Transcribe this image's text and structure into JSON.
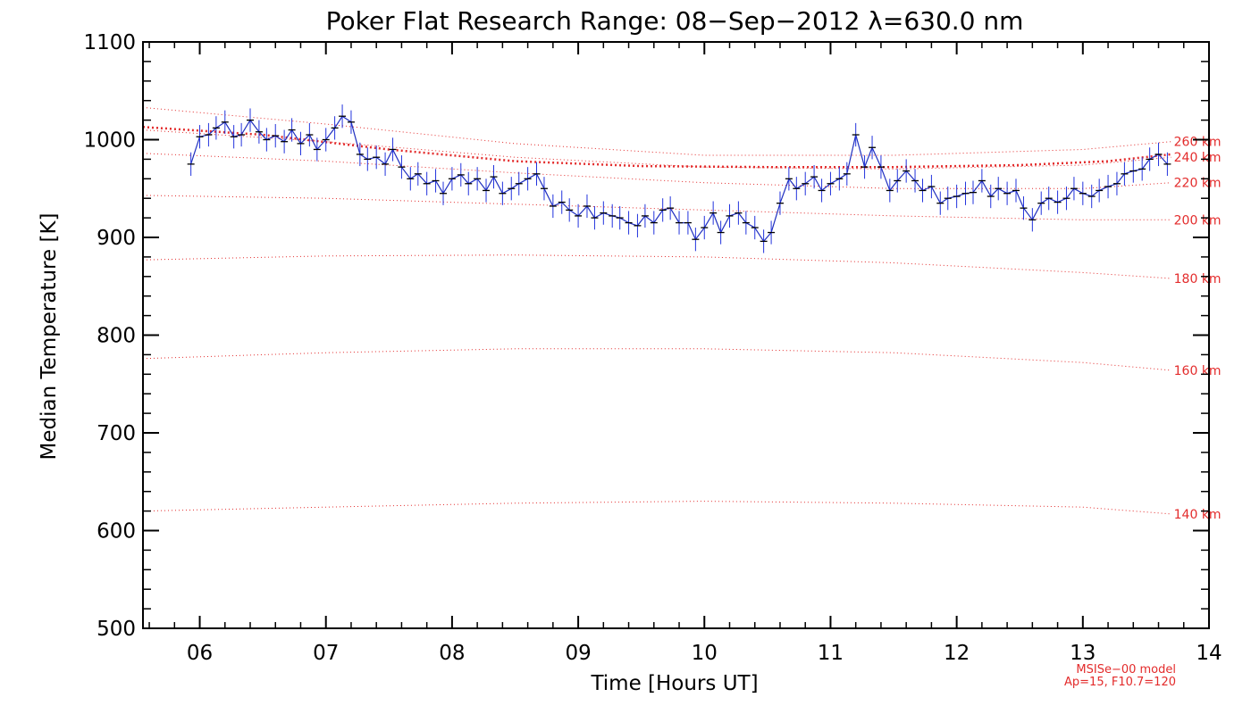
{
  "chart_data": {
    "type": "line",
    "title": "Poker Flat Research Range: 08−Sep−2012 λ=630.0 nm",
    "xlabel": "Time [Hours UT]",
    "ylabel": "Median Temperature [K]",
    "xlim": [
      5.55,
      14.0
    ],
    "ylim": [
      500,
      1100
    ],
    "x_ticks": [
      6,
      7,
      8,
      9,
      10,
      11,
      12,
      13,
      14
    ],
    "x_tick_labels": [
      "06",
      "07",
      "08",
      "09",
      "10",
      "11",
      "12",
      "13",
      "14"
    ],
    "y_ticks": [
      500,
      600,
      700,
      800,
      900,
      1000,
      1100
    ],
    "y_tick_labels": [
      "500",
      "600",
      "700",
      "800",
      "900",
      "1000",
      "1100"
    ],
    "grid": false,
    "colors": {
      "measurement_line": "#1f2fbf",
      "error_bars": "#2233dd",
      "median_marker": "#000000",
      "model": "#e32b2b"
    },
    "measured_series": {
      "x": [
        5.93,
        6.0,
        6.07,
        6.13,
        6.2,
        6.27,
        6.33,
        6.4,
        6.47,
        6.53,
        6.6,
        6.67,
        6.73,
        6.8,
        6.87,
        6.93,
        7.0,
        7.07,
        7.13,
        7.2,
        7.27,
        7.33,
        7.4,
        7.47,
        7.53,
        7.6,
        7.67,
        7.73,
        7.8,
        7.87,
        7.93,
        8.0,
        8.07,
        8.13,
        8.2,
        8.27,
        8.33,
        8.4,
        8.47,
        8.53,
        8.6,
        8.67,
        8.73,
        8.8,
        8.87,
        8.93,
        9.0,
        9.07,
        9.13,
        9.2,
        9.27,
        9.33,
        9.4,
        9.47,
        9.53,
        9.6,
        9.67,
        9.73,
        9.8,
        9.87,
        9.93,
        10.0,
        10.07,
        10.13,
        10.2,
        10.27,
        10.33,
        10.4,
        10.47,
        10.53,
        10.6,
        10.67,
        10.73,
        10.8,
        10.87,
        10.93,
        11.0,
        11.07,
        11.13,
        11.2,
        11.27,
        11.33,
        11.4,
        11.47,
        11.53,
        11.6,
        11.67,
        11.73,
        11.8,
        11.87,
        11.93,
        12.0,
        12.07,
        12.13,
        12.2,
        12.27,
        12.33,
        12.4,
        12.47,
        12.53,
        12.6,
        12.67,
        12.73,
        12.8,
        12.87,
        12.93,
        13.0,
        13.07,
        13.13,
        13.2,
        13.27,
        13.33,
        13.4,
        13.47,
        13.53,
        13.6,
        13.67
      ],
      "y": [
        975,
        1003,
        1005,
        1012,
        1018,
        1003,
        1005,
        1020,
        1008,
        1000,
        1004,
        998,
        1010,
        996,
        1005,
        990,
        1000,
        1012,
        1024,
        1018,
        985,
        980,
        982,
        975,
        990,
        972,
        960,
        965,
        955,
        958,
        945,
        960,
        964,
        955,
        960,
        948,
        962,
        945,
        950,
        955,
        960,
        965,
        950,
        932,
        936,
        928,
        922,
        932,
        920,
        925,
        922,
        920,
        915,
        912,
        922,
        915,
        928,
        930,
        915,
        915,
        898,
        910,
        925,
        905,
        922,
        925,
        915,
        910,
        896,
        905,
        935,
        960,
        950,
        955,
        962,
        948,
        955,
        960,
        965,
        1005,
        972,
        992,
        972,
        948,
        958,
        968,
        958,
        948,
        952,
        935,
        940,
        942,
        945,
        946,
        958,
        942,
        950,
        945,
        948,
        930,
        918,
        935,
        940,
        936,
        940,
        950,
        945,
        942,
        948,
        952,
        955,
        965,
        968,
        970,
        980,
        985,
        975
      ],
      "error": 12
    },
    "model_note": [
      "MSISe−00 model",
      "Ap=15, F10.7=120"
    ],
    "model_curves": [
      {
        "label": "140 km",
        "x": [
          5.55,
          7.0,
          8.5,
          10.0,
          11.5,
          13.0,
          13.7
        ],
        "y": [
          620,
          624,
          628,
          630,
          628,
          624,
          617
        ]
      },
      {
        "label": "160 km",
        "x": [
          5.55,
          7.0,
          8.5,
          10.0,
          11.5,
          13.0,
          13.7
        ],
        "y": [
          776,
          782,
          786,
          786,
          782,
          772,
          764
        ]
      },
      {
        "label": "180 km",
        "x": [
          5.55,
          7.0,
          8.5,
          10.0,
          11.5,
          13.0,
          13.7
        ],
        "y": [
          877,
          881,
          882,
          880,
          874,
          864,
          858
        ]
      },
      {
        "label": "200 km",
        "x": [
          5.55,
          7.0,
          8.5,
          10.0,
          11.5,
          13.0,
          13.7
        ],
        "y": [
          943,
          940,
          934,
          928,
          922,
          918,
          918
        ]
      },
      {
        "label": "220 km",
        "x": [
          5.55,
          7.0,
          8.5,
          10.0,
          11.5,
          13.0,
          13.7
        ],
        "y": [
          986,
          978,
          966,
          956,
          950,
          950,
          956
        ]
      },
      {
        "label": "240 km",
        "x": [
          5.55,
          7.0,
          8.5,
          10.0,
          11.5,
          13.0,
          13.7
        ],
        "y": [
          1010,
          998,
          982,
          972,
          970,
          974,
          982
        ]
      },
      {
        "label": "260 km",
        "x": [
          5.55,
          7.0,
          8.5,
          10.0,
          11.5,
          13.0,
          13.7
        ],
        "y": [
          1033,
          1016,
          996,
          984,
          984,
          990,
          998
        ]
      }
    ],
    "exospheric_curve": {
      "x": [
        5.55,
        6.5,
        7.5,
        8.5,
        9.5,
        10.5,
        11.5,
        12.5,
        13.2,
        13.7
      ],
      "y": [
        1013,
        1005,
        990,
        978,
        973,
        972,
        972,
        974,
        978,
        985
      ]
    }
  }
}
